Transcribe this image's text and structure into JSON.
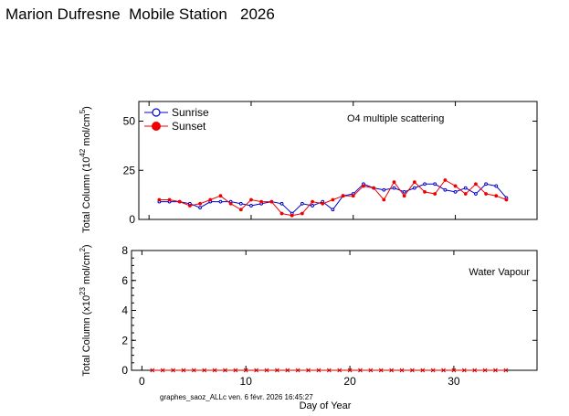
{
  "page": {
    "title": "Marion Dufresne  Mobile Station   2026",
    "footer": "graphes_saoz_ALLc ven. 6 févr. 2026 16:45:27"
  },
  "chart_data": [
    {
      "type": "line",
      "panel": "top",
      "title": "O4 multiple scattering",
      "ylabel_parts": [
        "Total Column (10",
        "42",
        " mol/cm",
        "5",
        ")"
      ],
      "xlabel": "",
      "xlim": [
        -1,
        38
      ],
      "ylim": [
        0,
        60
      ],
      "yticks": [
        0,
        25,
        50
      ],
      "xticks": [
        0,
        10,
        20,
        30
      ],
      "grid": false,
      "legend_position": "top-left",
      "series": [
        {
          "name": "Sunrise",
          "color": "#0000cc",
          "marker": "open-circle",
          "x": [
            1,
            2,
            3,
            4,
            5,
            6,
            7,
            8,
            9,
            10,
            11,
            12,
            13,
            14,
            15,
            16,
            17,
            18,
            19,
            20,
            21,
            22,
            23,
            24,
            25,
            26,
            27,
            28,
            29,
            30,
            31,
            32,
            33,
            34,
            35
          ],
          "values": [
            9,
            9,
            9,
            8,
            6,
            9,
            9,
            9,
            8,
            7,
            8,
            9,
            8,
            3,
            8,
            7,
            9,
            5,
            12,
            13,
            18,
            16,
            15,
            16,
            14,
            16,
            18,
            18,
            15,
            14,
            16,
            13,
            18,
            17,
            11
          ]
        },
        {
          "name": "Sunset",
          "color": "#ee0000",
          "marker": "filled-circle",
          "x": [
            1,
            2,
            3,
            4,
            5,
            6,
            7,
            8,
            9,
            10,
            11,
            12,
            13,
            14,
            15,
            16,
            17,
            18,
            19,
            20,
            21,
            22,
            23,
            24,
            25,
            26,
            27,
            28,
            29,
            30,
            31,
            32,
            33,
            34,
            35
          ],
          "values": [
            10,
            10,
            9,
            7,
            8,
            10,
            12,
            8,
            5,
            10,
            9,
            9,
            3,
            2,
            3,
            9,
            8,
            10,
            12,
            12,
            17,
            16,
            10,
            19,
            12,
            19,
            14,
            13,
            20,
            17,
            13,
            18,
            13,
            12,
            10
          ]
        }
      ]
    },
    {
      "type": "line",
      "panel": "bottom",
      "title": "Water Vapour",
      "ylabel_parts": [
        "Total Column (x10",
        "23",
        " mol/cm",
        "2",
        ")"
      ],
      "xlabel": "Day of Year",
      "xlim": [
        -1,
        38
      ],
      "ylim": [
        0,
        8
      ],
      "yticks": [
        0,
        2,
        4,
        6,
        8
      ],
      "xticks": [
        0,
        10,
        20,
        30
      ],
      "grid": false,
      "series": [
        {
          "color": "#cc0000",
          "x": [
            1,
            2,
            3,
            4,
            5,
            6,
            7,
            8,
            9,
            10,
            11,
            12,
            13,
            14,
            15,
            16,
            17,
            18,
            19,
            20,
            21,
            22,
            23,
            24,
            25,
            26,
            27,
            28,
            29,
            30,
            31,
            32,
            33,
            34,
            35
          ],
          "values": [
            0,
            0,
            0,
            0,
            0,
            0,
            0,
            0,
            0,
            0,
            0,
            0,
            0,
            0,
            0,
            0,
            0,
            0,
            0,
            0,
            0,
            0,
            0,
            0,
            0,
            0,
            0,
            0,
            0,
            0,
            0,
            0,
            0,
            0,
            0
          ]
        }
      ]
    }
  ]
}
